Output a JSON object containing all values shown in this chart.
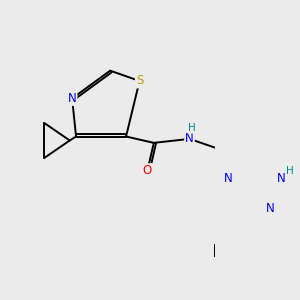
{
  "bg_color": "#ebebeb",
  "bond_color": "#000000",
  "atom_colors": {
    "S": "#b8a000",
    "N": "#0000ee",
    "O": "#ee0000",
    "NH": "#008888",
    "C": "#000000"
  },
  "font_size": 8.5,
  "fig_size": [
    3.0,
    3.0
  ],
  "dpi": 100
}
